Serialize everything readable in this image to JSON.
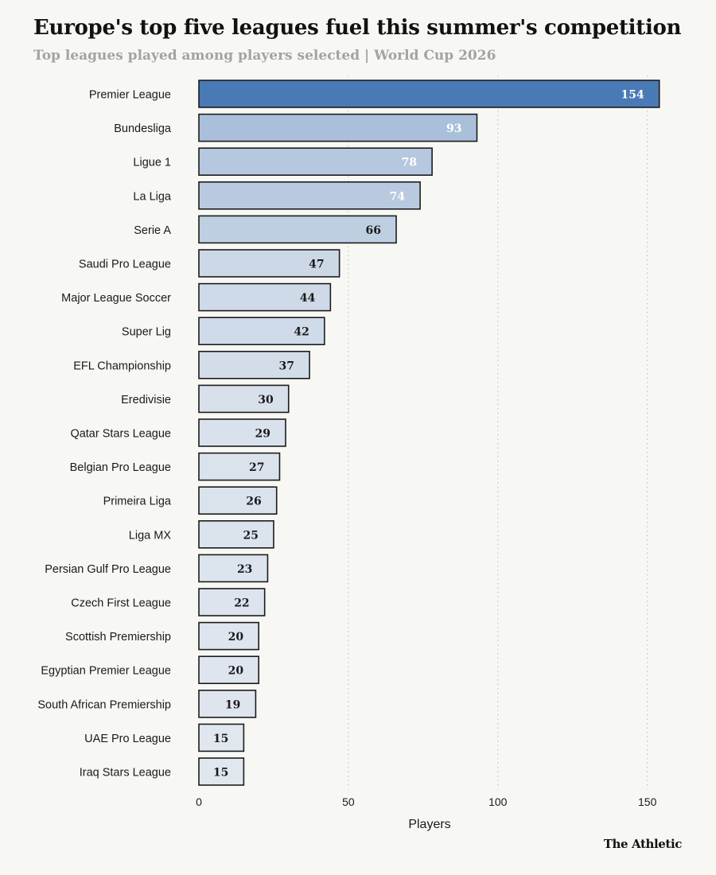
{
  "header": {
    "title": "Europe's top five leagues fuel this summer's competition",
    "subtitle": "Top leagues played among players selected | World Cup 2026"
  },
  "footer": {
    "brand": "The Athletic"
  },
  "chart_data": {
    "type": "bar",
    "orientation": "horizontal",
    "title": "Europe's top five leagues fuel this summer's competition",
    "subtitle": "Top leagues played among players selected | World Cup 2026",
    "xlabel": "Players",
    "ylabel": "",
    "xlim": [
      0,
      155
    ],
    "xticks": [
      0,
      50,
      100,
      150
    ],
    "grid": "vertical dotted",
    "categories": [
      "Premier League",
      "Bundesliga",
      "Ligue 1",
      "La Liga",
      "Serie A",
      "Saudi Pro League",
      "Major League Soccer",
      "Super Lig",
      "EFL Championship",
      "Eredivisie",
      "Qatar Stars League",
      "Belgian Pro League",
      "Primeira Liga",
      "Liga MX",
      "Persian Gulf Pro League",
      "Czech First League",
      "Scottish Premiership",
      "Egyptian Premier League",
      "South African Premiership",
      "UAE Pro League",
      "Iraq Stars League"
    ],
    "values": [
      154,
      93,
      78,
      74,
      66,
      47,
      44,
      42,
      37,
      30,
      29,
      27,
      26,
      25,
      23,
      22,
      20,
      20,
      19,
      15,
      15
    ],
    "colors": {
      "max": "#4a7ab5",
      "min": "#e1e7ef",
      "outline": "#1c1c1c",
      "label_dark": "#1a1a1a",
      "label_light": "#ffffff",
      "grid": "#b9b9b9"
    }
  }
}
